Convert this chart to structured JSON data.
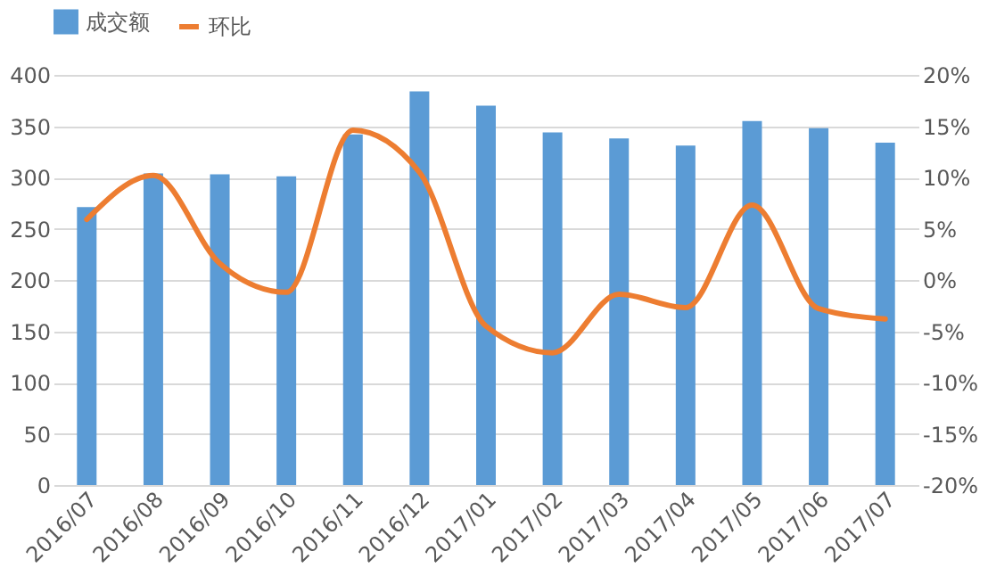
{
  "chart_data": {
    "type": "bar",
    "categories": [
      "2016/07",
      "2016/08",
      "2016/09",
      "2016/10",
      "2016/11",
      "2016/12",
      "2017/01",
      "2017/02",
      "2017/03",
      "2017/04",
      "2017/05",
      "2017/06",
      "2017/07"
    ],
    "series": [
      {
        "name": "成交额",
        "color": "#5b9bd5",
        "values": [
          271,
          304,
          303,
          301,
          342,
          384,
          370,
          344,
          338,
          331,
          355,
          348,
          334
        ]
      },
      {
        "name": "环比",
        "type": "line",
        "axis": "y2",
        "color": "#ed7d31",
        "values": [
          5.9,
          10.2,
          1.6,
          -1.2,
          14.6,
          10.5,
          -4.5,
          -7.1,
          -1.4,
          -2.7,
          7.3,
          -2.8,
          -3.8
        ]
      }
    ],
    "ylim": [
      0,
      400
    ],
    "yticks": [
      0,
      50,
      100,
      150,
      200,
      250,
      300,
      350,
      400
    ],
    "y2lim": [
      -20,
      20
    ],
    "y2ticks": [
      {
        "value": -20,
        "label": "-20%"
      },
      {
        "value": -15,
        "label": "-15%"
      },
      {
        "value": -10,
        "label": "-10%"
      },
      {
        "value": -5,
        "label": "-5%"
      },
      {
        "value": 0,
        "label": "0%"
      },
      {
        "value": 5,
        "label": "5%"
      },
      {
        "value": 10,
        "label": "10%"
      },
      {
        "value": 15,
        "label": "15%"
      },
      {
        "value": 20,
        "label": "20%"
      }
    ],
    "grid": "y",
    "legend": "top"
  }
}
